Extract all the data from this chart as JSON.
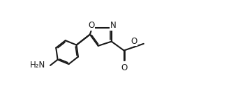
{
  "bg_color": "#ffffff",
  "line_color": "#1a1a1a",
  "line_width": 1.5,
  "font_size": 8.5,
  "fig_width": 3.31,
  "fig_height": 1.48,
  "dpi": 100,
  "xlim": [
    -1.5,
    7.5
  ],
  "ylim": [
    -3.5,
    2.5
  ]
}
